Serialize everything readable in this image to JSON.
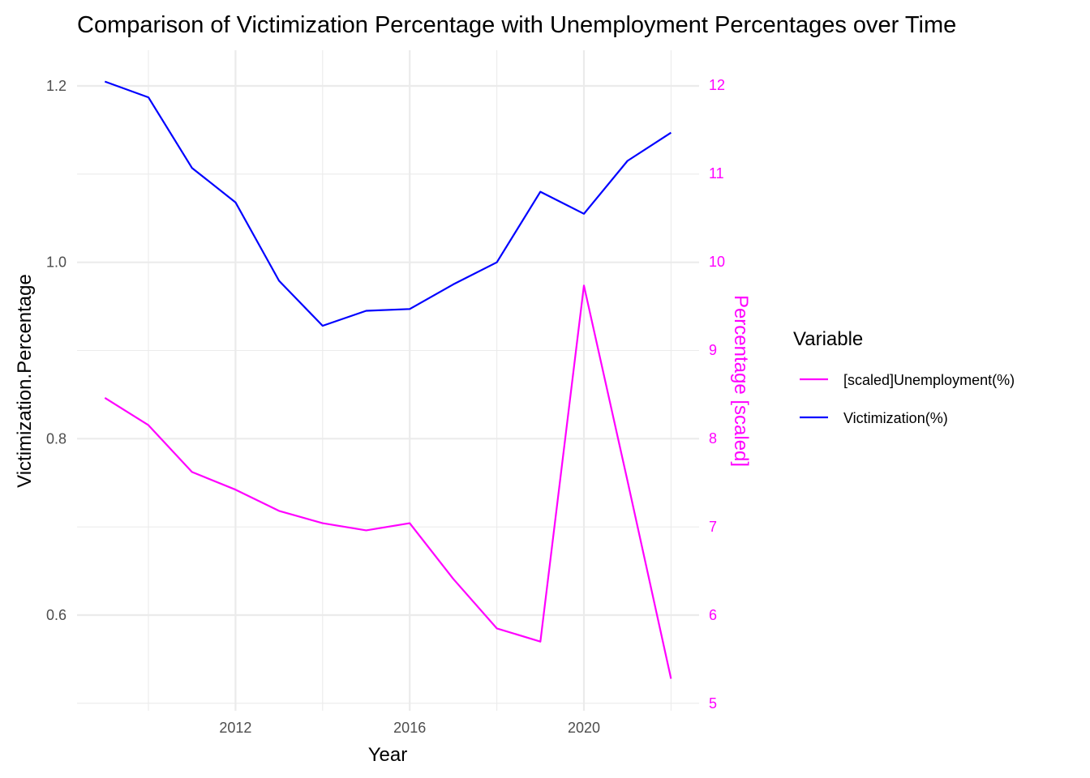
{
  "chart_data": {
    "type": "line",
    "title": "Comparison of Victimization Percentage with Unemployment Percentages over Time",
    "xlabel": "Year",
    "ylabel": "Victimization.Percentage",
    "ylabel_right": "Percentage [scaled]",
    "xlim": [
      2008.6,
      2022.6
    ],
    "ylim": [
      0.5,
      1.25
    ],
    "ylim_right": [
      5,
      12.5
    ],
    "x_ticks": [
      2012,
      2016,
      2020
    ],
    "x_minor_ticks": [
      2010,
      2014,
      2018,
      2022
    ],
    "y_ticks": [
      0.6,
      0.8,
      1.0,
      1.2
    ],
    "y_tick_labels": [
      "0.6",
      "0.8",
      "1.0",
      "1.2"
    ],
    "y_minor_ticks": [
      0.5,
      0.7,
      0.9,
      1.1
    ],
    "y_right_ticks": [
      5,
      6,
      7,
      8,
      9,
      10,
      11,
      12
    ],
    "grid": true,
    "legend": {
      "title": "Variable",
      "placement": "right"
    },
    "x": [
      2009,
      2010,
      2011,
      2012,
      2013,
      2014,
      2015,
      2016,
      2017,
      2018,
      2019,
      2020,
      2021,
      2022
    ],
    "series": [
      {
        "name": "[scaled]Unemployment(%)",
        "color": "#ff00ff",
        "axis": "right",
        "values": [
          8.46,
          8.15,
          7.62,
          7.42,
          7.18,
          7.04,
          6.96,
          7.04,
          6.41,
          5.85,
          5.7,
          9.73,
          7.52,
          5.28
        ]
      },
      {
        "name": "Victimization(%)",
        "color": "#0000ff",
        "axis": "left",
        "values": [
          1.205,
          1.187,
          1.107,
          1.068,
          0.979,
          0.928,
          0.945,
          0.947,
          0.975,
          1.0,
          1.08,
          1.055,
          1.115,
          1.147
        ]
      }
    ]
  }
}
